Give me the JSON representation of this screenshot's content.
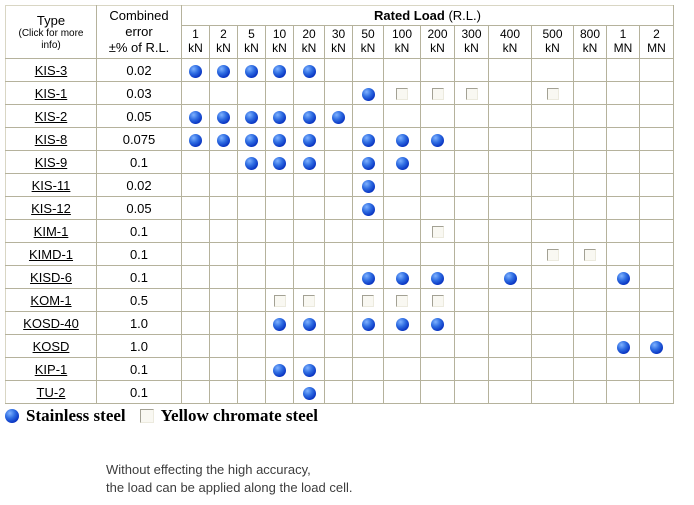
{
  "table": {
    "type_header": "Type",
    "type_subheader": "(Click for more info)",
    "error_header_lines": [
      "Combined",
      "error",
      "±% of R.L."
    ],
    "rated_load_header_bold": "Rated Load",
    "rated_load_header_rest": " (R.L.)",
    "load_columns": [
      {
        "value": "1",
        "unit": "kN"
      },
      {
        "value": "2",
        "unit": "kN"
      },
      {
        "value": "5",
        "unit": "kN"
      },
      {
        "value": "10",
        "unit": "kN"
      },
      {
        "value": "20",
        "unit": "kN"
      },
      {
        "value": "30",
        "unit": "kN"
      },
      {
        "value": "50",
        "unit": "kN"
      },
      {
        "value": "100",
        "unit": "kN"
      },
      {
        "value": "200",
        "unit": "kN"
      },
      {
        "value": "300",
        "unit": "kN"
      },
      {
        "value": "400",
        "unit": "kN"
      },
      {
        "value": "500",
        "unit": "kN"
      },
      {
        "value": "800",
        "unit": "kN"
      },
      {
        "value": "1",
        "unit": "MN"
      },
      {
        "value": "2",
        "unit": "MN"
      }
    ],
    "marker_meaning": {
      "dot": "Stainless steel",
      "square": "Yellow chromate steel"
    },
    "rows": [
      {
        "type": "KIS-3",
        "error": "0.02",
        "cells": [
          "dot",
          "dot",
          "dot",
          "dot",
          "dot",
          "",
          "",
          "",
          "",
          "",
          "",
          "",
          "",
          "",
          ""
        ]
      },
      {
        "type": "KIS-1",
        "error": "0.03",
        "cells": [
          "",
          "",
          "",
          "",
          "",
          "",
          "dot",
          "square",
          "square",
          "square",
          "",
          "square",
          "",
          "",
          ""
        ]
      },
      {
        "type": "KIS-2",
        "error": "0.05",
        "cells": [
          "dot",
          "dot",
          "dot",
          "dot",
          "dot",
          "dot",
          "",
          "",
          "",
          "",
          "",
          "",
          "",
          "",
          ""
        ]
      },
      {
        "type": "KIS-8",
        "error": "0.075",
        "cells": [
          "dot",
          "dot",
          "dot",
          "dot",
          "dot",
          "",
          "dot",
          "dot",
          "dot",
          "",
          "",
          "",
          "",
          "",
          ""
        ]
      },
      {
        "type": "KIS-9",
        "error": "0.1",
        "cells": [
          "",
          "",
          "dot",
          "dot",
          "dot",
          "",
          "dot",
          "dot",
          "",
          "",
          "",
          "",
          "",
          "",
          ""
        ]
      },
      {
        "type": "KIS-11",
        "error": "0.02",
        "cells": [
          "",
          "",
          "",
          "",
          "",
          "",
          "dot",
          "",
          "",
          "",
          "",
          "",
          "",
          "",
          ""
        ]
      },
      {
        "type": "KIS-12",
        "error": "0.05",
        "cells": [
          "",
          "",
          "",
          "",
          "",
          "",
          "dot",
          "",
          "",
          "",
          "",
          "",
          "",
          "",
          ""
        ]
      },
      {
        "type": "KIM-1",
        "error": "0.1",
        "cells": [
          "",
          "",
          "",
          "",
          "",
          "",
          "",
          "",
          "square",
          "",
          "",
          "",
          "",
          "",
          ""
        ]
      },
      {
        "type": "KIMD-1",
        "error": "0.1",
        "cells": [
          "",
          "",
          "",
          "",
          "",
          "",
          "",
          "",
          "",
          "",
          "",
          "square",
          "square",
          "",
          ""
        ]
      },
      {
        "type": "KISD-6",
        "error": "0.1",
        "cells": [
          "",
          "",
          "",
          "",
          "",
          "",
          "dot",
          "dot",
          "dot",
          "",
          "dot",
          "",
          "",
          "dot",
          ""
        ]
      },
      {
        "type": "KOM-1",
        "error": "0.5",
        "cells": [
          "",
          "",
          "",
          "square",
          "square",
          "",
          "square",
          "square",
          "square",
          "",
          "",
          "",
          "",
          "",
          ""
        ]
      },
      {
        "type": "KOSD-40",
        "error": "1.0",
        "cells": [
          "",
          "",
          "",
          "dot",
          "dot",
          "",
          "dot",
          "dot",
          "dot",
          "",
          "",
          "",
          "",
          "",
          ""
        ]
      },
      {
        "type": "KOSD",
        "error": "1.0",
        "cells": [
          "",
          "",
          "",
          "",
          "",
          "",
          "",
          "",
          "",
          "",
          "",
          "",
          "",
          "dot",
          "dot"
        ]
      },
      {
        "type": "KIP-1",
        "error": "0.1",
        "cells": [
          "",
          "",
          "",
          "dot",
          "dot",
          "",
          "",
          "",
          "",
          "",
          "",
          "",
          "",
          "",
          ""
        ]
      },
      {
        "type": "TU-2",
        "error": "0.1",
        "cells": [
          "",
          "",
          "",
          "",
          "dot",
          "",
          "",
          "",
          "",
          "",
          "",
          "",
          "",
          "",
          ""
        ]
      }
    ]
  },
  "legend": {
    "stainless": "Stainless steel",
    "yellow": "Yellow chromate steel"
  },
  "note": {
    "line1": "Without effecting the high accuracy,",
    "line2": "the load can be applied along the load cell."
  },
  "colors": {
    "dot_blue": "#0b37c4",
    "table_border": "#b5b29c",
    "note_text": "#3d3d3d"
  }
}
